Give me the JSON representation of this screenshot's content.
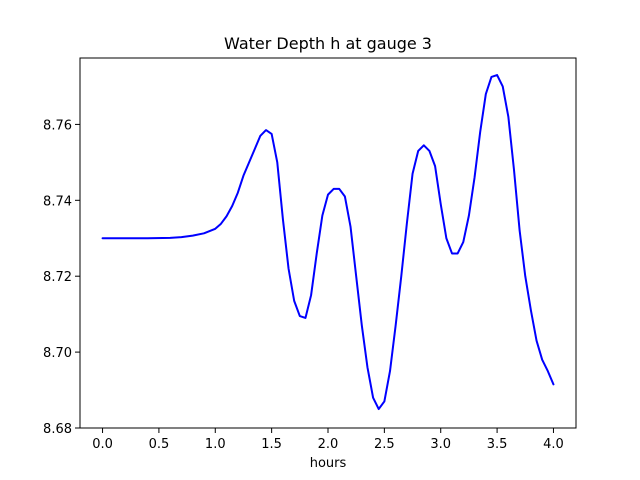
{
  "chart_data": {
    "type": "line",
    "title": "Water Depth h at gauge 3",
    "xlabel": "hours",
    "ylabel": "",
    "xlim": [
      -0.2,
      4.2
    ],
    "ylim": [
      8.68,
      8.7775
    ],
    "xticks": [
      0.0,
      0.5,
      1.0,
      1.5,
      2.0,
      2.5,
      3.0,
      3.5,
      4.0
    ],
    "xtick_labels": [
      "0.0",
      "0.5",
      "1.0",
      "1.5",
      "2.0",
      "2.5",
      "3.0",
      "3.5",
      "4.0"
    ],
    "yticks": [
      8.68,
      8.7,
      8.72,
      8.74,
      8.76
    ],
    "ytick_labels": [
      "8.68",
      "8.70",
      "8.72",
      "8.74",
      "8.76"
    ],
    "grid": false,
    "legend": "none",
    "series": [
      {
        "color": "#0000ff",
        "x": [
          0.0,
          0.2,
          0.4,
          0.6,
          0.7,
          0.8,
          0.9,
          1.0,
          1.05,
          1.1,
          1.15,
          1.2,
          1.25,
          1.3,
          1.35,
          1.4,
          1.45,
          1.5,
          1.55,
          1.6,
          1.65,
          1.7,
          1.75,
          1.8,
          1.85,
          1.9,
          1.95,
          2.0,
          2.05,
          2.1,
          2.15,
          2.2,
          2.25,
          2.3,
          2.35,
          2.4,
          2.45,
          2.5,
          2.55,
          2.6,
          2.65,
          2.7,
          2.75,
          2.8,
          2.85,
          2.9,
          2.95,
          3.0,
          3.05,
          3.1,
          3.15,
          3.2,
          3.25,
          3.3,
          3.35,
          3.4,
          3.45,
          3.5,
          3.55,
          3.6,
          3.65,
          3.7,
          3.75,
          3.8,
          3.85,
          3.9,
          3.95,
          4.0
        ],
        "y": [
          8.73,
          8.73,
          8.73,
          8.7301,
          8.7303,
          8.7307,
          8.7313,
          8.7325,
          8.7338,
          8.7358,
          8.7385,
          8.742,
          8.7465,
          8.75,
          8.7535,
          8.757,
          8.7585,
          8.7575,
          8.75,
          8.735,
          8.722,
          8.7135,
          8.7095,
          8.709,
          8.715,
          8.726,
          8.736,
          8.7415,
          8.743,
          8.743,
          8.741,
          8.733,
          8.72,
          8.707,
          8.696,
          8.688,
          8.685,
          8.687,
          8.695,
          8.707,
          8.72,
          8.734,
          8.747,
          8.753,
          8.7545,
          8.753,
          8.749,
          8.739,
          8.73,
          8.726,
          8.726,
          8.729,
          8.736,
          8.746,
          8.758,
          8.768,
          8.7725,
          8.773,
          8.77,
          8.762,
          8.748,
          8.732,
          8.72,
          8.711,
          8.703,
          8.698,
          8.695,
          8.6915
        ]
      }
    ]
  }
}
